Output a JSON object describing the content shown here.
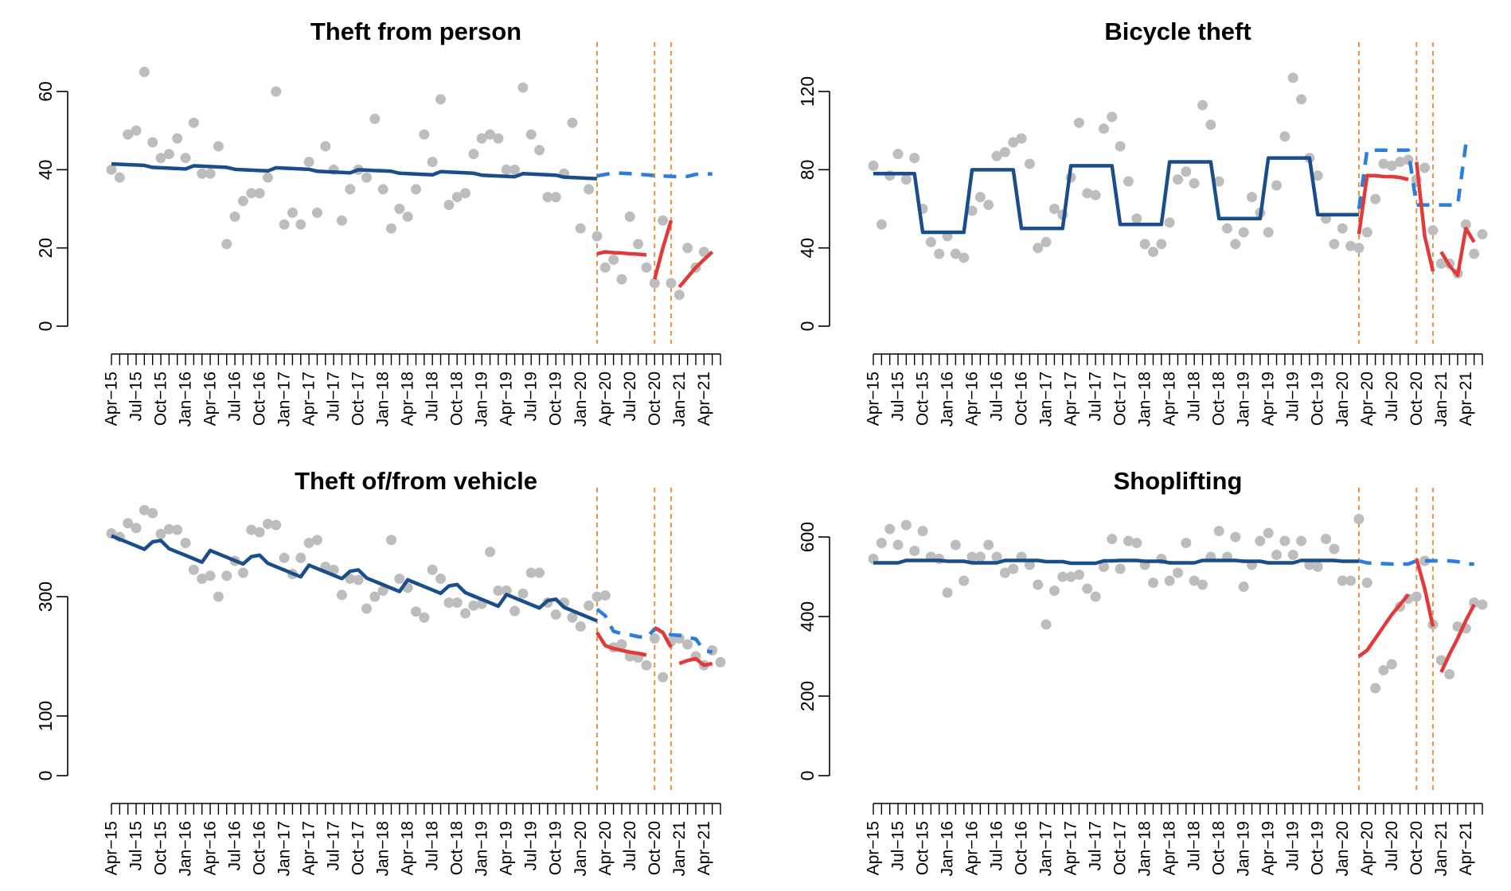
{
  "colors": {
    "points": "#bdbdbd",
    "fitted": "#1a4e8a",
    "counterfactual": "#2b7fdb",
    "observed_fit": "#e23a3a",
    "intervention_lines": "#e8892b",
    "axes": "#000000"
  },
  "chart_data": [
    {
      "type": "scatter",
      "title": "Theft from person",
      "xlabel": "",
      "ylabel": "",
      "ylim": [
        0,
        60
      ],
      "yticks": [
        0,
        20,
        40,
        60
      ],
      "months_start": "2015-04",
      "x_tick_labels": [
        "Apr−15",
        "Jul−15",
        "Oct−15",
        "Jan−16",
        "Apr−16",
        "Jul−16",
        "Oct−16",
        "Jan−17",
        "Apr−17",
        "Jul−17",
        "Oct−17",
        "Jan−18",
        "Apr−18",
        "Jul−18",
        "Oct−18",
        "Jan−19",
        "Apr−19",
        "Jul−19",
        "Oct−19",
        "Jan−20",
        "Apr−20",
        "Jul−20",
        "Oct−20",
        "Jan−21",
        "Apr−21"
      ],
      "intervention_months": [
        "2020-03",
        "2020-10",
        "2020-12"
      ],
      "observed": [
        40,
        38,
        49,
        50,
        65,
        47,
        43,
        44,
        48,
        43,
        52,
        39,
        39,
        46,
        21,
        28,
        32,
        34,
        34,
        38,
        60,
        26,
        29,
        26,
        42,
        29,
        46,
        40,
        27,
        35,
        40,
        38,
        53,
        35,
        25,
        30,
        28,
        35,
        49,
        42,
        58,
        31,
        33,
        34,
        44,
        48,
        49,
        48,
        40,
        40,
        61,
        49,
        45,
        33,
        33,
        39,
        52,
        25,
        35,
        23,
        15,
        17,
        12,
        28,
        21,
        15,
        11,
        27,
        11,
        8,
        20,
        15,
        19
      ],
      "fitted": [
        41.5,
        41.4,
        41.3,
        41.2,
        41.1,
        40.6,
        40.5,
        40.4,
        40.3,
        40.2,
        41.0,
        40.9,
        40.8,
        40.7,
        40.6,
        40.1,
        40.0,
        39.9,
        39.8,
        39.7,
        40.5,
        40.4,
        40.3,
        40.2,
        40.1,
        39.6,
        39.5,
        39.4,
        39.3,
        39.2,
        40.0,
        39.9,
        39.8,
        39.7,
        39.6,
        39.1,
        39.0,
        38.9,
        38.8,
        38.7,
        39.5,
        39.4,
        39.3,
        39.2,
        39.1,
        38.6,
        38.5,
        38.4,
        38.3,
        38.2,
        39.0,
        38.9,
        38.8,
        38.7,
        38.6,
        38.1,
        38.0,
        37.9,
        37.8,
        37.7
      ],
      "counterfactual": [
        {
          "x": "2020-03",
          "y": 38.4
        },
        {
          "x": "2020-04",
          "y": 38.8
        },
        {
          "x": "2020-05",
          "y": 39.2
        },
        {
          "x": "2020-06",
          "y": 39.1
        },
        {
          "x": "2020-07",
          "y": 39.0
        },
        {
          "x": "2020-08",
          "y": 38.8
        },
        {
          "x": "2020-09",
          "y": 38.7
        },
        {
          "x": "2020-10",
          "y": 38.5
        },
        {
          "x": "2020-11",
          "y": 38.4
        },
        {
          "x": "2020-12",
          "y": 38.3
        },
        {
          "x": "2021-01",
          "y": 38.2
        },
        {
          "x": "2021-02",
          "y": 38.3
        },
        {
          "x": "2021-03",
          "y": 38.8
        },
        {
          "x": "2021-04",
          "y": 39.0
        },
        {
          "x": "2021-05",
          "y": 38.9
        }
      ],
      "segments": [
        [
          {
            "x": "2020-03",
            "y": 18.5
          },
          {
            "x": "2020-04",
            "y": 19.0
          },
          {
            "x": "2020-05",
            "y": 18.8
          },
          {
            "x": "2020-06",
            "y": 18.7
          },
          {
            "x": "2020-07",
            "y": 18.5
          },
          {
            "x": "2020-08",
            "y": 18.4
          },
          {
            "x": "2020-09",
            "y": 18.2
          }
        ],
        [
          {
            "x": "2020-10",
            "y": 12.0
          },
          {
            "x": "2020-11",
            "y": 20.0
          },
          {
            "x": "2020-12",
            "y": 27.0
          }
        ],
        [
          {
            "x": "2021-01",
            "y": 10.0
          },
          {
            "x": "2021-02",
            "y": 12.5
          },
          {
            "x": "2021-03",
            "y": 15.0
          },
          {
            "x": "2021-04",
            "y": 17.0
          },
          {
            "x": "2021-05",
            "y": 19.0
          }
        ]
      ]
    },
    {
      "type": "scatter",
      "title": "Bicycle theft",
      "xlabel": "",
      "ylabel": "",
      "ylim": [
        0,
        120
      ],
      "yticks": [
        0,
        40,
        80,
        120
      ],
      "months_start": "2015-04",
      "x_tick_labels": [
        "Apr−15",
        "Jul−15",
        "Oct−15",
        "Jan−16",
        "Apr−16",
        "Jul−16",
        "Oct−16",
        "Jan−17",
        "Apr−17",
        "Jul−17",
        "Oct−17",
        "Jan−18",
        "Apr−18",
        "Jul−18",
        "Oct−18",
        "Jan−19",
        "Apr−19",
        "Jul−19",
        "Oct−19",
        "Jan−20",
        "Apr−20",
        "Jul−20",
        "Oct−20",
        "Jan−21",
        "Apr−21"
      ],
      "intervention_months": [
        "2020-03",
        "2020-10",
        "2020-12"
      ],
      "observed": [
        82,
        52,
        77,
        88,
        75,
        86,
        60,
        43,
        37,
        46,
        37,
        35,
        59,
        66,
        62,
        87,
        89,
        94,
        96,
        83,
        40,
        43,
        60,
        57,
        76,
        104,
        68,
        67,
        101,
        107,
        92,
        74,
        55,
        42,
        38,
        42,
        53,
        75,
        79,
        73,
        113,
        103,
        74,
        50,
        42,
        48,
        66,
        58,
        48,
        72,
        97,
        127,
        116,
        86,
        77,
        55,
        42,
        50,
        41,
        40,
        48,
        65,
        83,
        82,
        84,
        85,
        75,
        81,
        49,
        32,
        32,
        27,
        52,
        37,
        47
      ],
      "fitted": [
        78,
        78,
        78,
        78,
        78,
        78,
        48,
        48,
        48,
        48,
        48,
        48,
        80,
        80,
        80,
        80,
        80,
        80,
        50,
        50,
        50,
        50,
        50,
        50,
        82,
        82,
        82,
        82,
        82,
        82,
        52,
        52,
        52,
        52,
        52,
        52,
        84,
        84,
        84,
        84,
        84,
        84,
        55,
        55,
        55,
        55,
        55,
        55,
        86,
        86,
        86,
        86,
        86,
        86,
        57,
        57,
        57,
        57,
        57,
        57
      ],
      "counterfactual": [
        {
          "x": "2020-03",
          "y": 60
        },
        {
          "x": "2020-04",
          "y": 90
        },
        {
          "x": "2020-05",
          "y": 90
        },
        {
          "x": "2020-06",
          "y": 90
        },
        {
          "x": "2020-07",
          "y": 90
        },
        {
          "x": "2020-08",
          "y": 90
        },
        {
          "x": "2020-09",
          "y": 90
        },
        {
          "x": "2020-10",
          "y": 62
        },
        {
          "x": "2020-11",
          "y": 62
        },
        {
          "x": "2020-12",
          "y": 62
        },
        {
          "x": "2021-01",
          "y": 62
        },
        {
          "x": "2021-02",
          "y": 62
        },
        {
          "x": "2021-03",
          "y": 62
        },
        {
          "x": "2021-04",
          "y": 93
        },
        {
          "x": "2021-05",
          "y": 93
        }
      ],
      "segments": [
        [
          {
            "x": "2020-03",
            "y": 47
          },
          {
            "x": "2020-04",
            "y": 77
          },
          {
            "x": "2020-05",
            "y": 77
          },
          {
            "x": "2020-06",
            "y": 76.5
          },
          {
            "x": "2020-07",
            "y": 76.5
          },
          {
            "x": "2020-08",
            "y": 76
          },
          {
            "x": "2020-09",
            "y": 75
          }
        ],
        [
          {
            "x": "2020-10",
            "y": 84
          },
          {
            "x": "2020-11",
            "y": 46
          },
          {
            "x": "2020-12",
            "y": 28
          }
        ],
        [
          {
            "x": "2021-01",
            "y": 38
          },
          {
            "x": "2021-02",
            "y": 31
          },
          {
            "x": "2021-03",
            "y": 26
          },
          {
            "x": "2021-04",
            "y": 50
          },
          {
            "x": "2021-05",
            "y": 43
          }
        ]
      ]
    },
    {
      "type": "scatter",
      "title": "Theft of/from vehicle",
      "xlabel": "",
      "ylabel": "",
      "ylim": [
        0,
        400
      ],
      "yticks": [
        0,
        100,
        300
      ],
      "months_start": "2015-04",
      "x_tick_labels": [
        "Apr−15",
        "Jul−15",
        "Oct−15",
        "Jan−16",
        "Apr−16",
        "Jul−16",
        "Oct−16",
        "Jan−17",
        "Apr−17",
        "Jul−17",
        "Oct−17",
        "Jan−18",
        "Apr−18",
        "Jul−18",
        "Oct−18",
        "Jan−19",
        "Apr−19",
        "Jul−19",
        "Oct−19",
        "Jan−20",
        "Apr−20",
        "Jul−20",
        "Oct−20",
        "Jan−21",
        "Apr−21"
      ],
      "intervention_months": [
        "2020-03",
        "2020-10",
        "2020-12"
      ],
      "observed": [
        406,
        400,
        423,
        415,
        445,
        440,
        405,
        413,
        412,
        390,
        345,
        330,
        335,
        300,
        335,
        360,
        340,
        412,
        408,
        422,
        420,
        365,
        338,
        365,
        390,
        395,
        350,
        345,
        303,
        330,
        328,
        280,
        300,
        310,
        395,
        330,
        315,
        275,
        265,
        345,
        330,
        290,
        290,
        272,
        285,
        288,
        375,
        310,
        310,
        276,
        305,
        340,
        340,
        290,
        270,
        290,
        265,
        250,
        285,
        300,
        302,
        215,
        220,
        200,
        198,
        185,
        230,
        165,
        225,
        230,
        220,
        200,
        185,
        210,
        190
      ]
    },
    {
      "type": "scatter",
      "title": "Shoplifting",
      "xlabel": "",
      "ylabel": "",
      "ylim": [
        0,
        600
      ],
      "yticks": [
        0,
        200,
        400,
        600
      ],
      "months_start": "2015-04",
      "x_tick_labels": [
        "Apr−15",
        "Jul−15",
        "Oct−15",
        "Jan−16",
        "Apr−16",
        "Jul−16",
        "Oct−16",
        "Jan−17",
        "Apr−17",
        "Jul−17",
        "Oct−17",
        "Jan−18",
        "Apr−18",
        "Jul−18",
        "Oct−18",
        "Jan−19",
        "Apr−19",
        "Jul−19",
        "Oct−19",
        "Jan−20",
        "Apr−20",
        "Jul−20",
        "Oct−20",
        "Jan−21",
        "Apr−21"
      ],
      "intervention_months": [
        "2020-03",
        "2020-10",
        "2020-12"
      ],
      "observed": [
        545,
        585,
        620,
        580,
        630,
        565,
        615,
        550,
        545,
        460,
        580,
        490,
        550,
        550,
        580,
        550,
        510,
        520,
        550,
        530,
        480,
        380,
        465,
        500,
        500,
        505,
        470,
        450,
        525,
        595,
        520,
        590,
        585,
        530,
        485,
        545,
        490,
        510,
        585,
        490,
        480,
        550,
        615,
        550,
        600,
        475,
        530,
        590,
        610,
        555,
        590,
        555,
        590,
        530,
        525,
        595,
        570,
        490,
        490,
        645,
        485,
        220,
        265,
        280,
        425,
        445,
        450,
        540,
        380,
        290,
        255,
        375,
        370,
        435,
        430
      ]
    }
  ]
}
